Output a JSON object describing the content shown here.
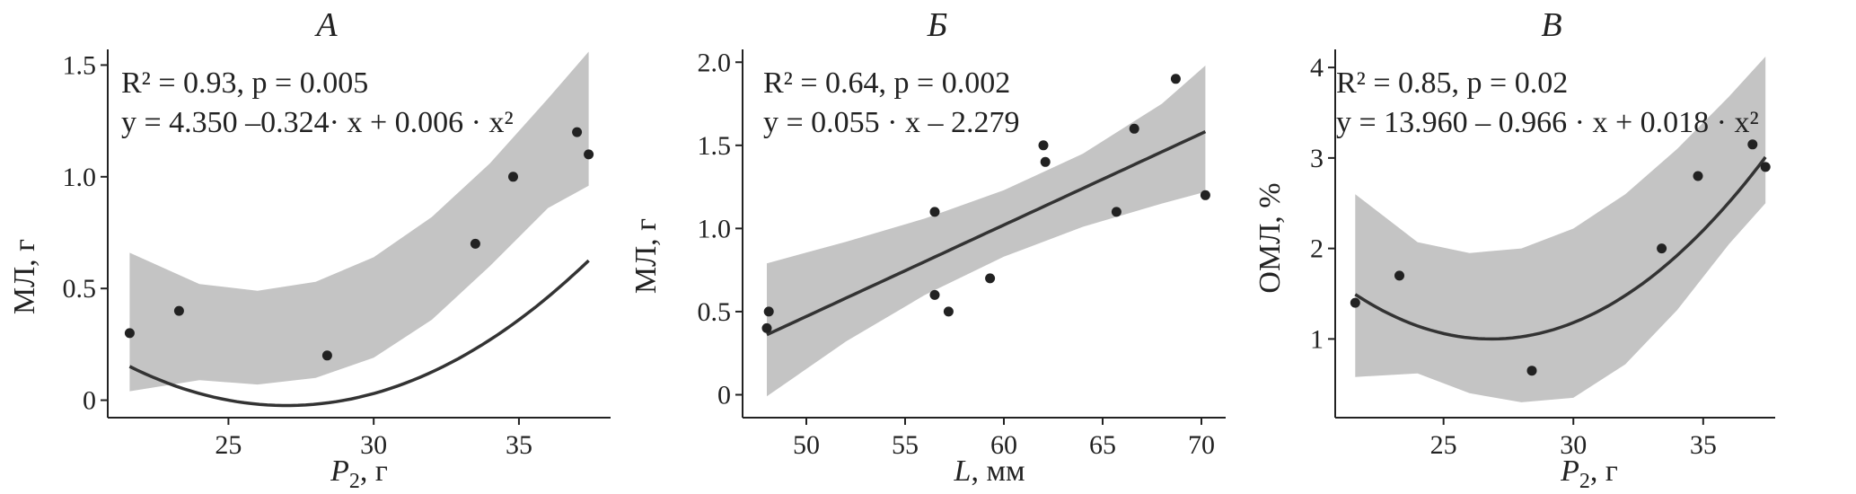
{
  "chart_data": [
    {
      "type": "scatter",
      "panel_title": "А",
      "xlabel_main": "P",
      "xlabel_sub": "2",
      "xlabel_unit": ", г",
      "ylabel": "МЛ, г",
      "xlim": [
        21,
        38
      ],
      "ylim": [
        -0.05,
        1.55
      ],
      "xticks": [
        25,
        30,
        35
      ],
      "xtick_labels": [
        "25",
        "30",
        "35"
      ],
      "yticks": [
        0,
        0.5,
        1.0,
        1.5
      ],
      "ytick_labels": [
        "0",
        "0.5",
        "1.0",
        "1.5"
      ],
      "points": [
        [
          21.6,
          0.3
        ],
        [
          23.3,
          0.4
        ],
        [
          28.4,
          0.2
        ],
        [
          33.5,
          0.7
        ],
        [
          34.8,
          1.0
        ],
        [
          37.0,
          1.2
        ],
        [
          37.4,
          1.1
        ]
      ],
      "fit": {
        "kind": "poly",
        "coef": [
          4.35,
          -0.324,
          0.006
        ],
        "x_range": [
          21.6,
          37.4
        ]
      },
      "band_upper": [
        [
          21.6,
          0.66
        ],
        [
          24.0,
          0.52
        ],
        [
          26.0,
          0.49
        ],
        [
          28.0,
          0.53
        ],
        [
          30.0,
          0.64
        ],
        [
          32.0,
          0.82
        ],
        [
          34.0,
          1.06
        ],
        [
          36.0,
          1.35
        ],
        [
          37.4,
          1.56
        ]
      ],
      "band_lower": [
        [
          21.6,
          0.04
        ],
        [
          24.0,
          0.09
        ],
        [
          26.0,
          0.07
        ],
        [
          28.0,
          0.1
        ],
        [
          30.0,
          0.19
        ],
        [
          32.0,
          0.36
        ],
        [
          34.0,
          0.6
        ],
        [
          36.0,
          0.86
        ],
        [
          37.4,
          0.96
        ]
      ],
      "annotation_r2": "R² = 0.93, p = 0.005",
      "annotation_eq": "y = 4.350 –0.324· x + 0.006 · x²"
    },
    {
      "type": "scatter",
      "panel_title": "Б",
      "xlabel_main": "L",
      "xlabel_sub": "",
      "xlabel_unit": ", мм",
      "ylabel": "МЛ, г",
      "xlim": [
        47,
        71
      ],
      "ylim": [
        -0.1,
        2.05
      ],
      "xticks": [
        50,
        55,
        60,
        65,
        70
      ],
      "xtick_labels": [
        "50",
        "55",
        "60",
        "65",
        "70"
      ],
      "yticks": [
        0,
        0.5,
        1.0,
        1.5,
        2.0
      ],
      "ytick_labels": [
        "0",
        "0.5",
        "1.0",
        "1.5",
        "2.0"
      ],
      "points": [
        [
          48.0,
          0.4
        ],
        [
          48.1,
          0.5
        ],
        [
          56.5,
          1.1
        ],
        [
          56.5,
          0.6
        ],
        [
          57.2,
          0.5
        ],
        [
          59.3,
          0.7
        ],
        [
          62.0,
          1.5
        ],
        [
          62.1,
          1.4
        ],
        [
          65.7,
          1.1
        ],
        [
          66.6,
          1.6
        ],
        [
          68.7,
          1.9
        ],
        [
          70.2,
          1.2
        ]
      ],
      "fit": {
        "kind": "linear",
        "coef": [
          -2.279,
          0.055
        ],
        "x_range": [
          48.0,
          70.2
        ]
      },
      "band_upper": [
        [
          48.0,
          0.79
        ],
        [
          52.0,
          0.92
        ],
        [
          56.0,
          1.06
        ],
        [
          60.0,
          1.23
        ],
        [
          64.0,
          1.45
        ],
        [
          68.0,
          1.75
        ],
        [
          70.2,
          1.98
        ]
      ],
      "band_lower": [
        [
          48.0,
          -0.01
        ],
        [
          52.0,
          0.32
        ],
        [
          56.0,
          0.6
        ],
        [
          60.0,
          0.83
        ],
        [
          64.0,
          1.01
        ],
        [
          68.0,
          1.15
        ],
        [
          70.2,
          1.22
        ]
      ],
      "annotation_r2": "R² = 0.64, p = 0.002",
      "annotation_eq": "y = 0.055 · x – 2.279"
    },
    {
      "type": "scatter",
      "panel_title": "В",
      "xlabel_main": "P",
      "xlabel_sub": "2",
      "xlabel_unit": ", г",
      "ylabel": "ОМЛ, %",
      "xlim": [
        21,
        37.6
      ],
      "ylim": [
        0.2,
        4.15
      ],
      "xticks": [
        25,
        30,
        35
      ],
      "xtick_labels": [
        "25",
        "30",
        "35"
      ],
      "yticks": [
        1,
        2,
        3,
        4
      ],
      "ytick_labels": [
        "1",
        "2",
        "3",
        "4"
      ],
      "points": [
        [
          21.6,
          1.4
        ],
        [
          23.3,
          1.7
        ],
        [
          28.4,
          0.65
        ],
        [
          33.4,
          2.0
        ],
        [
          34.8,
          2.8
        ],
        [
          36.9,
          3.15
        ],
        [
          37.4,
          2.9
        ]
      ],
      "fit": {
        "kind": "poly",
        "coef": [
          13.96,
          -0.966,
          0.018
        ],
        "x_range": [
          21.6,
          37.4
        ]
      },
      "band_upper": [
        [
          21.6,
          2.6
        ],
        [
          24.0,
          2.07
        ],
        [
          26.0,
          1.95
        ],
        [
          28.0,
          2.0
        ],
        [
          30.0,
          2.22
        ],
        [
          32.0,
          2.6
        ],
        [
          34.0,
          3.1
        ],
        [
          36.0,
          3.68
        ],
        [
          37.4,
          4.12
        ]
      ],
      "band_lower": [
        [
          21.6,
          0.58
        ],
        [
          24.0,
          0.62
        ],
        [
          26.0,
          0.4
        ],
        [
          28.0,
          0.3
        ],
        [
          30.0,
          0.35
        ],
        [
          32.0,
          0.72
        ],
        [
          34.0,
          1.32
        ],
        [
          36.0,
          2.05
        ],
        [
          37.4,
          2.5
        ]
      ],
      "annotation_r2": "R² = 0.85, p = 0.02",
      "annotation_eq": "y = 13.960 – 0.966 · x + 0.018 · x²"
    }
  ]
}
